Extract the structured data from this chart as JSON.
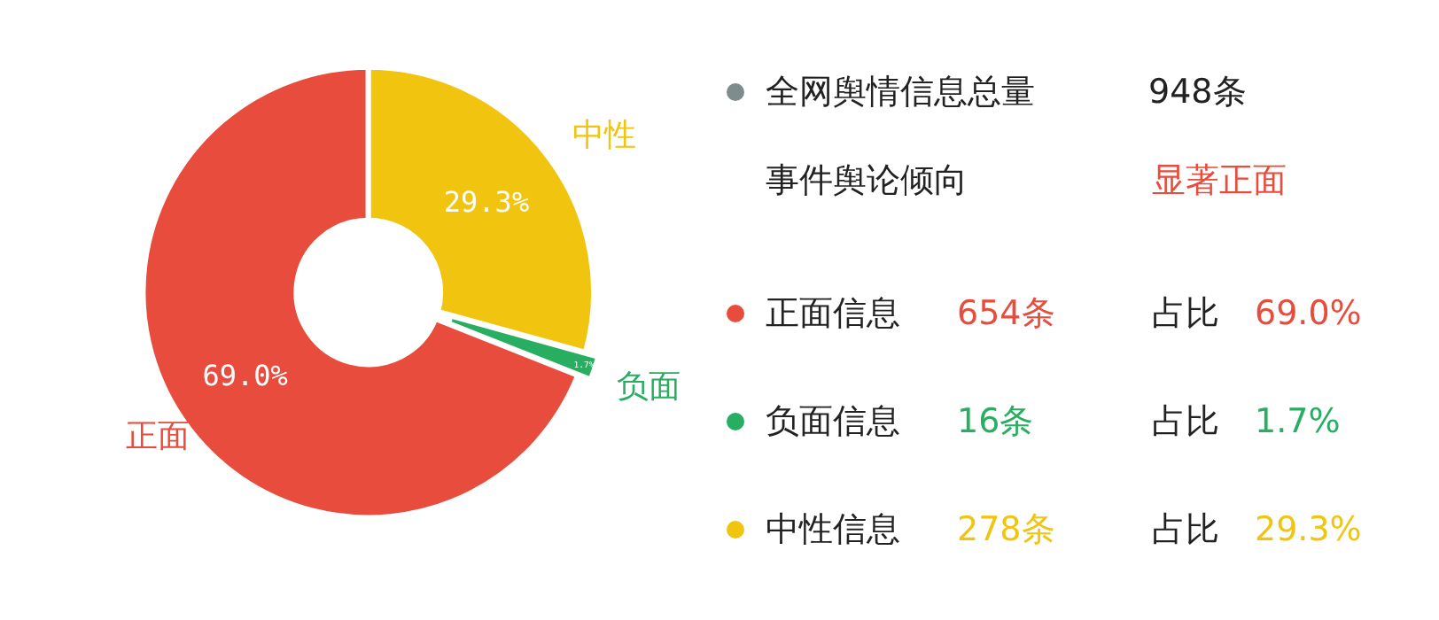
{
  "chart_data": [
    {
      "type": "donut",
      "categories": [
        "正面",
        "负面",
        "中性"
      ],
      "values": [
        69.0,
        1.7,
        29.3
      ],
      "value_labels": [
        "69.0%",
        "1.7%",
        "29.3%"
      ],
      "colors": [
        "#e74c3c",
        "#27ae60",
        "#f1c40f"
      ]
    },
    {
      "type": "other",
      "categories": [
        "正面信息",
        "负面信息",
        "中性信息"
      ],
      "values": [
        654,
        16,
        278
      ],
      "value_labels": [
        "654条",
        "16条",
        "278条"
      ],
      "colors": [
        "#e74c3c",
        "#27ae60",
        "#f1c40f"
      ],
      "annotations": [
        "全网舆情信息总量",
        "948条",
        "事件舆论倾向",
        "显著正面",
        "占比"
      ]
    }
  ]
}
